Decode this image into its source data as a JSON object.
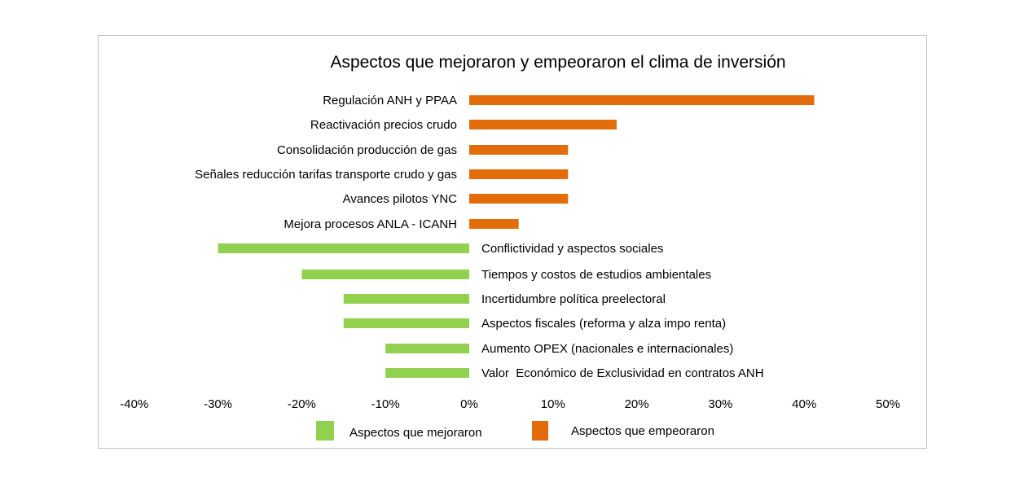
{
  "chart_data": {
    "type": "bar",
    "orientation": "horizontal",
    "title": "Aspectos que mejoraron y empeoraron el clima de inversión",
    "xlabel": "",
    "ylabel": "",
    "xlim": [
      -0.4,
      0.5
    ],
    "x_ticks": [
      "-40%",
      "-30%",
      "-20%",
      "-10%",
      "0%",
      "10%",
      "20%",
      "30%",
      "40%",
      "50%"
    ],
    "x_tick_values": [
      -0.4,
      -0.3,
      -0.2,
      -0.1,
      0,
      0.1,
      0.2,
      0.3,
      0.4,
      0.5
    ],
    "grid": false,
    "legend_position": "bottom",
    "series": [
      {
        "name": "Aspectos que mejoraron",
        "color": "#92d050"
      },
      {
        "name": "Aspectos que empeoraron",
        "color": "#e36c0a"
      }
    ],
    "categories": [
      "Regulación ANH y PPAA",
      "Reactivación precios crudo",
      "Consolidación producción de gas",
      "Señales reducción tarifas transporte crudo y gas",
      "Avances pilotos YNC",
      "Mejora procesos ANLA - ICANH",
      "Conflictividad y aspectos sociales",
      "Tiempos y costos de estudios ambientales",
      "Incertidumbre política preelectoral",
      "Aspectos fiscales (reforma y alza impo renta)",
      "Aumento OPEX (nacionales e internacionales)",
      "Valor  Económico de Exclusividad en contratos ANH"
    ],
    "values": [
      0.412,
      0.176,
      0.118,
      0.118,
      0.118,
      0.059,
      -0.3,
      -0.2,
      -0.15,
      -0.15,
      -0.1,
      -0.1
    ],
    "bar_series_index": [
      1,
      1,
      1,
      1,
      1,
      1,
      0,
      0,
      0,
      0,
      0,
      0
    ]
  }
}
